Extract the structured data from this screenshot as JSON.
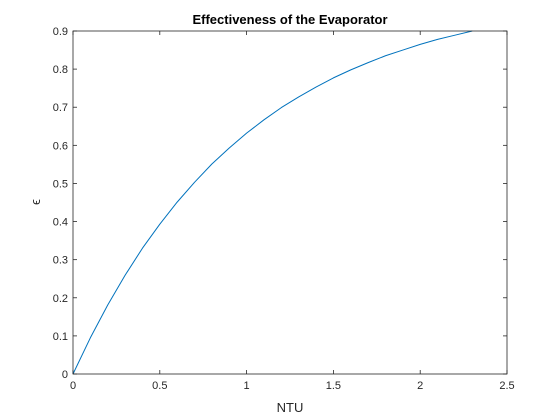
{
  "chart_data": {
    "type": "line",
    "title": "Effectiveness of the Evaporator",
    "xlabel": "NTU",
    "ylabel": "ϵ",
    "xlim": [
      0,
      2.5
    ],
    "ylim": [
      0,
      0.9
    ],
    "xticks": [
      0,
      0.5,
      1,
      1.5,
      2,
      2.5
    ],
    "xtick_labels": [
      "0",
      "0.5",
      "1",
      "1.5",
      "2",
      "2.5"
    ],
    "yticks": [
      0,
      0.1,
      0.2,
      0.3,
      0.4,
      0.5,
      0.6,
      0.7,
      0.8,
      0.9
    ],
    "ytick_labels": [
      "0",
      "0.1",
      "0.2",
      "0.3",
      "0.4",
      "0.5",
      "0.6",
      "0.7",
      "0.8",
      "0.9"
    ],
    "grid": false,
    "series": [
      {
        "color": "#0072BD",
        "x": [
          0,
          0.1,
          0.2,
          0.3,
          0.4,
          0.5,
          0.6,
          0.7,
          0.8,
          0.9,
          1.0,
          1.1,
          1.2,
          1.3,
          1.4,
          1.5,
          1.6,
          1.7,
          1.8,
          1.9,
          2.0,
          2.1,
          2.2,
          2.3
        ],
        "y": [
          0,
          0.095,
          0.181,
          0.259,
          0.33,
          0.393,
          0.451,
          0.503,
          0.551,
          0.593,
          0.632,
          0.667,
          0.699,
          0.727,
          0.753,
          0.777,
          0.798,
          0.817,
          0.835,
          0.85,
          0.865,
          0.878,
          0.889,
          0.9
        ]
      }
    ]
  }
}
